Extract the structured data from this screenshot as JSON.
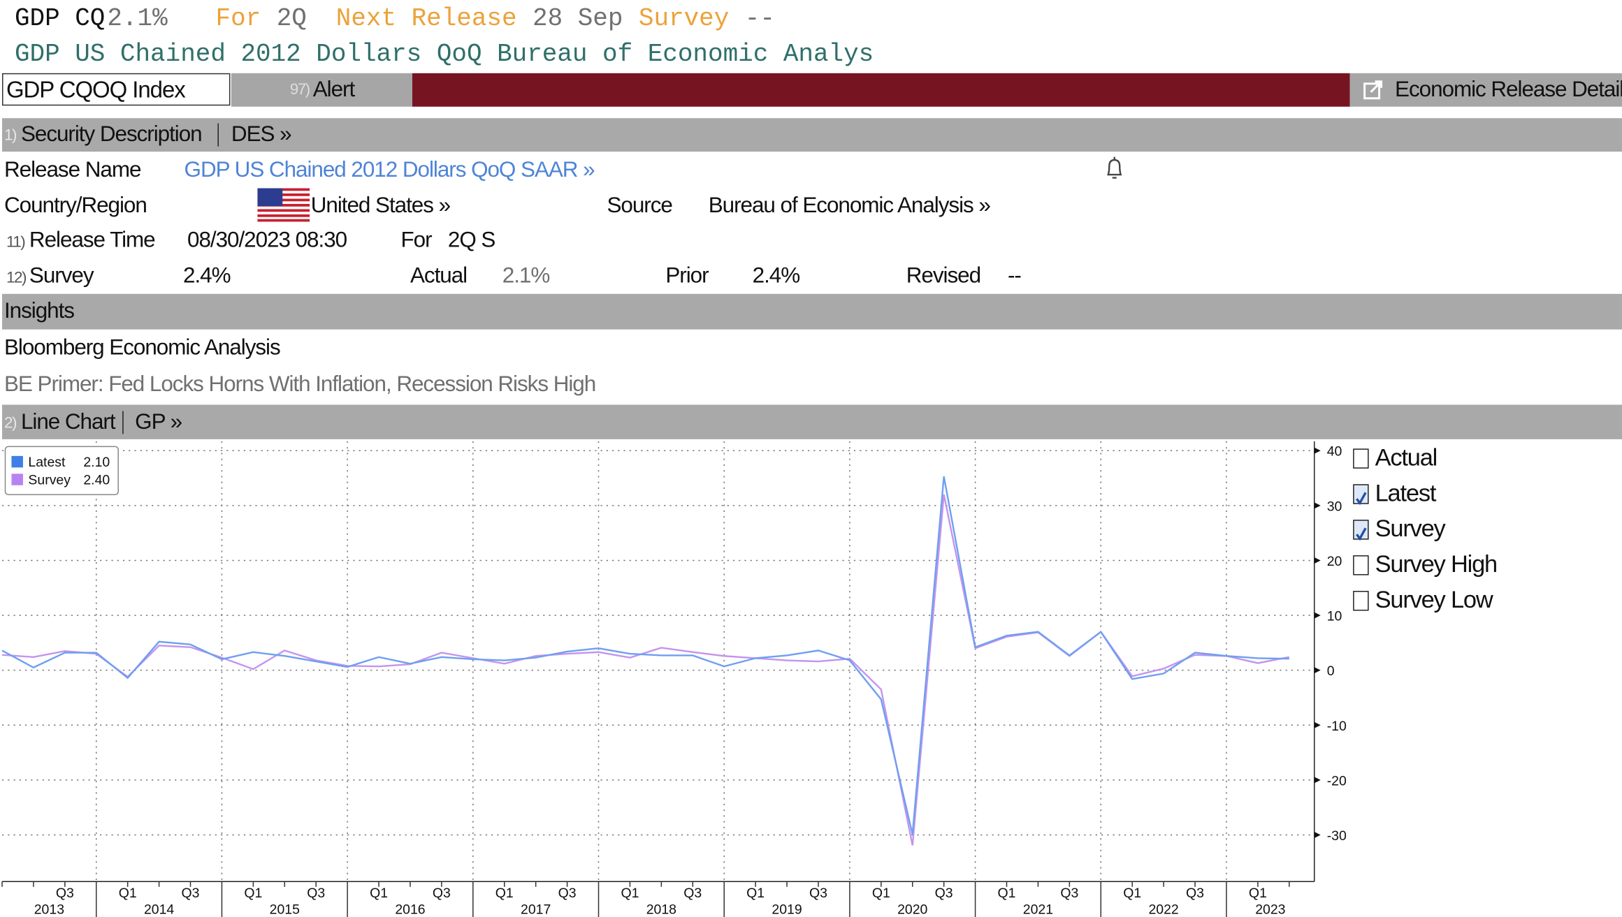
{
  "header": {
    "ticker": "GDP CQ",
    "value": "2.1%",
    "for_label": "For",
    "for_value": "2Q",
    "next_release_label": "Next Release",
    "next_release_value": "28 Sep",
    "survey_label": "Survey",
    "survey_value": "--",
    "subtitle": "GDP US Chained 2012 Dollars QoQ Bureau of Economic Analys"
  },
  "toolbar": {
    "security": "GDP CQOQ Index",
    "alert_num": "97)",
    "alert": "Alert",
    "details": "Economic Release Details"
  },
  "description": {
    "num": "1)",
    "title": "Security Description",
    "function": "DES »"
  },
  "fields": {
    "release_name_label": "Release Name",
    "release_name": "GDP US Chained 2012 Dollars QoQ SAAR »",
    "country_label": "Country/Region",
    "country": "United States »",
    "source_label": "Source",
    "source": "Bureau of Economic Analysis »",
    "release_time_num": "11)",
    "release_time_label": "Release Time",
    "release_time": "08/30/2023 08:30",
    "for_label": "For",
    "for_value": "2Q S",
    "survey_num": "12)",
    "survey_label": "Survey",
    "survey": "2.4%",
    "actual_label": "Actual",
    "actual": "2.1%",
    "prior_label": "Prior",
    "prior": "2.4%",
    "revised_label": "Revised",
    "revised": "--"
  },
  "insights": {
    "title": "Insights",
    "analysis": "Bloomberg Economic Analysis",
    "primer": "BE Primer: Fed Locks Horns With Inflation, Recession Risks High"
  },
  "chart_section": {
    "num": "2)",
    "title": "Line Chart",
    "function": "GP »"
  },
  "chart_data": {
    "type": "line",
    "categories": [
      null,
      null,
      "Q3",
      null,
      "Q1",
      null,
      "Q3",
      null,
      "Q1",
      null,
      "Q3",
      null,
      "Q1",
      null,
      "Q3",
      null,
      "Q1",
      null,
      "Q3",
      null,
      "Q1",
      null,
      "Q3",
      null,
      "Q1",
      null,
      "Q3",
      null,
      "Q1",
      null,
      "Q3",
      null,
      "Q1",
      null,
      "Q3",
      null,
      "Q1",
      null,
      "Q3",
      null,
      "Q1",
      null
    ],
    "years": [
      "2013",
      "2014",
      "2015",
      "2016",
      "2017",
      "2018",
      "2019",
      "2020",
      "2021",
      "2022",
      "2023"
    ],
    "series": [
      {
        "name": "Latest",
        "legend_value": "2.10",
        "color": "#6f9ff0",
        "legend_color": "#3f7fe6",
        "values": [
          3.6,
          0.5,
          3.2,
          3.2,
          -1.4,
          5.2,
          4.7,
          2.0,
          3.3,
          2.6,
          1.6,
          0.6,
          2.4,
          1.2,
          2.4,
          2.0,
          1.8,
          2.3,
          3.4,
          4.0,
          3.0,
          2.7,
          2.7,
          0.7,
          2.2,
          2.7,
          3.6,
          1.8,
          -5.3,
          -29.9,
          35.3,
          4.2,
          6.3,
          7.0,
          2.7,
          7.0,
          -1.6,
          -0.6,
          3.2,
          2.6,
          2.2,
          2.1
        ]
      },
      {
        "name": "Survey",
        "legend_value": "2.40",
        "color": "#c394ef",
        "legend_color": "#b883f0",
        "values": [
          2.8,
          2.4,
          3.5,
          3.0,
          -1.2,
          4.5,
          4.2,
          2.3,
          0.2,
          3.6,
          1.8,
          0.8,
          0.7,
          1.1,
          3.2,
          2.2,
          1.2,
          2.6,
          3.0,
          3.3,
          2.3,
          4.1,
          3.3,
          2.6,
          2.2,
          1.8,
          1.6,
          2.1,
          -3.5,
          -31.9,
          32.0,
          4.0,
          6.1,
          6.9,
          2.6,
          7.0,
          -1.1,
          0.3,
          2.8,
          2.6,
          1.3,
          2.4
        ]
      }
    ],
    "ylim": [
      -38.5,
      41.7
    ],
    "yticks": [
      -30,
      -20,
      -10,
      0,
      10,
      20,
      30,
      40
    ],
    "grid": true
  },
  "checkboxes": [
    {
      "label": "Actual",
      "checked": false
    },
    {
      "label": "Latest",
      "checked": true
    },
    {
      "label": "Survey",
      "checked": true
    },
    {
      "label": "Survey High",
      "checked": false
    },
    {
      "label": "Survey Low",
      "checked": false
    }
  ]
}
